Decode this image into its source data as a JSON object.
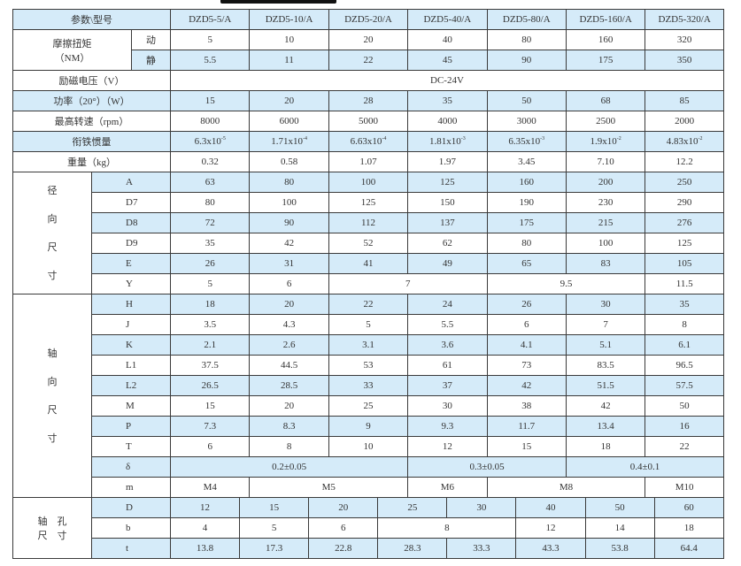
{
  "header": {
    "label": "参数\\型号",
    "models": [
      "DZD5-5/A",
      "DZD5-10/A",
      "DZD5-20/A",
      "DZD5-40/A",
      "DZD5-80/A",
      "DZD5-160/A",
      "DZD5-320/A"
    ]
  },
  "friction": {
    "label_line1": "摩擦扭矩",
    "label_line2": "（NM）",
    "dynamic_label": "动",
    "dynamic": [
      "5",
      "10",
      "20",
      "40",
      "80",
      "160",
      "320"
    ],
    "static_label": "静",
    "static": [
      "5.5",
      "11",
      "22",
      "45",
      "90",
      "175",
      "350"
    ]
  },
  "voltage": {
    "label": "励磁电压（V）",
    "value": "DC-24V"
  },
  "power": {
    "label": "功率（20°）（W）",
    "values": [
      "15",
      "20",
      "28",
      "35",
      "50",
      "68",
      "85"
    ]
  },
  "speed": {
    "label": "最高转速（rpm）",
    "values": [
      "8000",
      "6000",
      "5000",
      "4000",
      "3000",
      "2500",
      "2000"
    ]
  },
  "inertia": {
    "label": "衔铁惯量",
    "values": [
      {
        "base": "6.3x10",
        "exp": "-5"
      },
      {
        "base": "1.71x10",
        "exp": "-4"
      },
      {
        "base": "6.63x10",
        "exp": "-4"
      },
      {
        "base": "1.81x10",
        "exp": "-3"
      },
      {
        "base": "6.35x10",
        "exp": "-3"
      },
      {
        "base": "1.9x10",
        "exp": "-2"
      },
      {
        "base": "4.83x10",
        "exp": "-2"
      }
    ]
  },
  "weight": {
    "label": "重量（kg）",
    "values": [
      "0.32",
      "0.58",
      "1.07",
      "1.97",
      "3.45",
      "7.10",
      "12.2"
    ]
  },
  "radial": {
    "label": [
      "径",
      "向",
      "尺",
      "寸"
    ],
    "rows": [
      {
        "name": "A",
        "cells": [
          {
            "v": "63"
          },
          {
            "v": "80"
          },
          {
            "v": "100"
          },
          {
            "v": "125"
          },
          {
            "v": "160"
          },
          {
            "v": "200"
          },
          {
            "v": "250"
          }
        ]
      },
      {
        "name": "D7",
        "cells": [
          {
            "v": "80"
          },
          {
            "v": "100"
          },
          {
            "v": "125"
          },
          {
            "v": "150"
          },
          {
            "v": "190"
          },
          {
            "v": "230"
          },
          {
            "v": "290"
          }
        ]
      },
      {
        "name": "D8",
        "cells": [
          {
            "v": "72"
          },
          {
            "v": "90"
          },
          {
            "v": "112"
          },
          {
            "v": "137"
          },
          {
            "v": "175"
          },
          {
            "v": "215"
          },
          {
            "v": "276"
          }
        ]
      },
      {
        "name": "D9",
        "cells": [
          {
            "v": "35"
          },
          {
            "v": "42"
          },
          {
            "v": "52"
          },
          {
            "v": "62"
          },
          {
            "v": "80"
          },
          {
            "v": "100"
          },
          {
            "v": "125"
          }
        ]
      },
      {
        "name": "E",
        "cells": [
          {
            "v": "26"
          },
          {
            "v": "31"
          },
          {
            "v": "41"
          },
          {
            "v": "49"
          },
          {
            "v": "65"
          },
          {
            "v": "83"
          },
          {
            "v": "105"
          }
        ]
      },
      {
        "name": "Y",
        "cells": [
          {
            "v": "5"
          },
          {
            "v": "6"
          },
          {
            "v": "7",
            "span": 2
          },
          {
            "v": "9.5",
            "span": 2
          },
          {
            "v": "11.5"
          }
        ]
      }
    ]
  },
  "axial": {
    "label": [
      "轴",
      "向",
      "尺",
      "寸"
    ],
    "rows": [
      {
        "name": "H",
        "cells": [
          {
            "v": "18"
          },
          {
            "v": "20"
          },
          {
            "v": "22"
          },
          {
            "v": "24"
          },
          {
            "v": "26"
          },
          {
            "v": "30"
          },
          {
            "v": "35"
          }
        ]
      },
      {
        "name": "J",
        "cells": [
          {
            "v": "3.5"
          },
          {
            "v": "4.3"
          },
          {
            "v": "5"
          },
          {
            "v": "5.5"
          },
          {
            "v": "6"
          },
          {
            "v": "7"
          },
          {
            "v": "8"
          }
        ]
      },
      {
        "name": "K",
        "cells": [
          {
            "v": "2.1"
          },
          {
            "v": "2.6"
          },
          {
            "v": "3.1"
          },
          {
            "v": "3.6"
          },
          {
            "v": "4.1"
          },
          {
            "v": "5.1"
          },
          {
            "v": "6.1"
          }
        ]
      },
      {
        "name": "L1",
        "cells": [
          {
            "v": "37.5"
          },
          {
            "v": "44.5"
          },
          {
            "v": "53"
          },
          {
            "v": "61"
          },
          {
            "v": "73"
          },
          {
            "v": "83.5"
          },
          {
            "v": "96.5"
          }
        ]
      },
      {
        "name": "L2",
        "cells": [
          {
            "v": "26.5"
          },
          {
            "v": "28.5"
          },
          {
            "v": "33"
          },
          {
            "v": "37"
          },
          {
            "v": "42"
          },
          {
            "v": "51.5"
          },
          {
            "v": "57.5"
          }
        ]
      },
      {
        "name": "M",
        "cells": [
          {
            "v": "15"
          },
          {
            "v": "20"
          },
          {
            "v": "25"
          },
          {
            "v": "30"
          },
          {
            "v": "38"
          },
          {
            "v": "42"
          },
          {
            "v": "50"
          }
        ]
      },
      {
        "name": "P",
        "cells": [
          {
            "v": "7.3"
          },
          {
            "v": "8.3"
          },
          {
            "v": "9"
          },
          {
            "v": "9.3"
          },
          {
            "v": "11.7"
          },
          {
            "v": "13.4"
          },
          {
            "v": "16"
          }
        ]
      },
      {
        "name": "T",
        "cells": [
          {
            "v": "6"
          },
          {
            "v": "8"
          },
          {
            "v": "10"
          },
          {
            "v": "12"
          },
          {
            "v": "15"
          },
          {
            "v": "18"
          },
          {
            "v": "22"
          }
        ]
      },
      {
        "name": "δ",
        "cells": [
          {
            "v": "0.2±0.05",
            "span": 3
          },
          {
            "v": "0.3±0.05",
            "span": 2
          },
          {
            "v": "0.4±0.1",
            "span": 2
          }
        ]
      },
      {
        "name": "m",
        "cells": [
          {
            "v": "M4"
          },
          {
            "v": "M5",
            "span": 2
          },
          {
            "v": "M6"
          },
          {
            "v": "M8",
            "span": 2
          },
          {
            "v": "M10"
          }
        ]
      }
    ]
  },
  "shaft_hole": {
    "label_line1": "轴　孔",
    "label_line2": "尺　寸",
    "rows": [
      {
        "name": "D",
        "cells": [
          {
            "v": "12"
          },
          {
            "v": "15"
          },
          {
            "v": "20"
          },
          {
            "v": "25"
          },
          {
            "v": "30"
          },
          {
            "v": "40"
          },
          {
            "v": "50"
          },
          {
            "v": "60"
          }
        ]
      },
      {
        "name": "b",
        "cells": [
          {
            "v": "4"
          },
          {
            "v": "5"
          },
          {
            "v": "6"
          },
          {
            "v": "8",
            "span": 2
          },
          {
            "v": "12"
          },
          {
            "v": "14"
          },
          {
            "v": "18"
          }
        ]
      },
      {
        "name": "t",
        "cells": [
          {
            "v": "13.8"
          },
          {
            "v": "17.3"
          },
          {
            "v": "22.8"
          },
          {
            "v": "28.3"
          },
          {
            "v": "33.3"
          },
          {
            "v": "43.3"
          },
          {
            "v": "53.8"
          },
          {
            "v": "64.4"
          }
        ]
      }
    ]
  },
  "colors": {
    "row_highlight": "#d5ebf9",
    "border": "#3a3a3a"
  }
}
